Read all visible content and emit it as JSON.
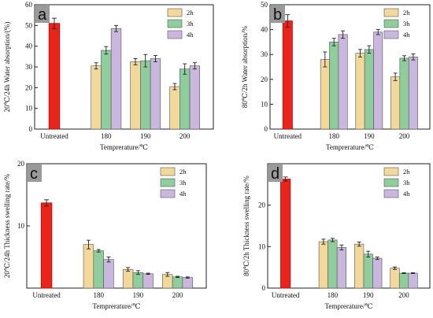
{
  "colors": {
    "2h": "#f3d89b",
    "3h": "#8fce9c",
    "4h": "#c9b7de",
    "untreated": "#e8241b",
    "panel_letter_bg": "#9a9a9a"
  },
  "chart_data": [
    {
      "type": "bar",
      "panel": "a",
      "xlabel": "Temprerature/℃",
      "ylabel": "20℃/24h Water absorption/(%)",
      "ylim": [
        0,
        60
      ],
      "yticks": [
        0,
        10,
        20,
        30,
        40,
        50,
        60
      ],
      "legend_position": "top-right",
      "untreated": {
        "category": "Untreated",
        "value": 51,
        "error": 2.5
      },
      "categories": [
        "180",
        "190",
        "200"
      ],
      "series": [
        {
          "name": "2h",
          "values": [
            30.5,
            32.5,
            20.5
          ],
          "errors": [
            1.5,
            1.5,
            1.5
          ]
        },
        {
          "name": "3h",
          "values": [
            38,
            33,
            29
          ],
          "errors": [
            1.8,
            3,
            2.5
          ]
        },
        {
          "name": "4h",
          "values": [
            48.5,
            34,
            30.5
          ],
          "errors": [
            1.5,
            1.5,
            1.5
          ]
        }
      ]
    },
    {
      "type": "bar",
      "panel": "b",
      "xlabel": "Temprerature/℃",
      "ylabel": "80℃/2h Water absorption/%",
      "ylim": [
        0,
        50
      ],
      "yticks": [
        0,
        10,
        20,
        30,
        40,
        50
      ],
      "legend_position": "top-right",
      "untreated": {
        "category": "Untreated",
        "value": 43.5,
        "error": 2.5
      },
      "categories": [
        "180",
        "190",
        "200"
      ],
      "series": [
        {
          "name": "2h",
          "values": [
            28,
            30.5,
            21
          ],
          "errors": [
            3,
            1.5,
            1.5
          ]
        },
        {
          "name": "3h",
          "values": [
            35,
            32,
            28.5
          ],
          "errors": [
            1.5,
            1.5,
            1
          ]
        },
        {
          "name": "4h",
          "values": [
            38,
            39,
            29
          ],
          "errors": [
            1.5,
            1,
            1.2
          ]
        }
      ]
    },
    {
      "type": "bar",
      "panel": "c",
      "xlabel": "Temprerature/℃",
      "ylabel": "20℃/24h Thickness swelling rate/%",
      "ylim": [
        0,
        20
      ],
      "yticks": [
        10,
        20
      ],
      "legend_position": "top-right",
      "untreated": {
        "category": "Untreated",
        "value": 13.7,
        "error": 0.5
      },
      "categories": [
        "180",
        "190",
        "200"
      ],
      "series": [
        {
          "name": "2h",
          "values": [
            7,
            3,
            2.2
          ],
          "errors": [
            0.7,
            0.3,
            0.3
          ]
        },
        {
          "name": "3h",
          "values": [
            6,
            2.5,
            1.8
          ],
          "errors": [
            0.2,
            0.3,
            0.1
          ]
        },
        {
          "name": "4h",
          "values": [
            4.6,
            2.3,
            1.7
          ],
          "errors": [
            0.4,
            0.1,
            0.1
          ]
        }
      ]
    },
    {
      "type": "bar",
      "panel": "d",
      "xlabel": "Temprerature/℃",
      "ylabel": "80℃/2h Thickness swelling rate/%",
      "ylim": [
        0,
        30
      ],
      "yticks": [
        0,
        10,
        20
      ],
      "legend_position": "top-right",
      "untreated": {
        "category": "Untreated",
        "value": 26.3,
        "error": 0.5
      },
      "categories": [
        "180",
        "190",
        "200"
      ],
      "series": [
        {
          "name": "2h",
          "values": [
            11.2,
            10.6,
            4.8
          ],
          "errors": [
            0.6,
            0.5,
            0.3
          ]
        },
        {
          "name": "3h",
          "values": [
            11.6,
            8.2,
            3.6
          ],
          "errors": [
            0.4,
            0.7,
            0.1
          ]
        },
        {
          "name": "4h",
          "values": [
            9.8,
            7.2,
            3.6
          ],
          "errors": [
            0.6,
            0.3,
            0.1
          ]
        }
      ]
    }
  ]
}
